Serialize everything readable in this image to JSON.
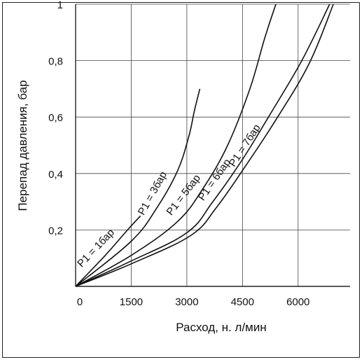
{
  "chart_data": {
    "type": "line",
    "xlabel": "Расход, н. л/мин",
    "ylabel": "Перепад давления, бар",
    "xlim": [
      0,
      7400
    ],
    "ylim": [
      0,
      1.0
    ],
    "x_ticks": [
      0,
      1500,
      3000,
      4500,
      6000
    ],
    "x_tick_labels": [
      "0",
      "1500",
      "3000",
      "4500",
      "6000"
    ],
    "y_ticks": [
      0.2,
      0.4,
      0.6,
      0.8,
      1.0
    ],
    "y_tick_labels": [
      "0,2",
      "0,4",
      "0,6",
      "0,8",
      "1"
    ],
    "grid": true,
    "series": [
      {
        "name": "P1 = 1бар",
        "x": [
          0,
          800,
          1400,
          1750
        ],
        "y": [
          0,
          0.11,
          0.2,
          0.25
        ]
      },
      {
        "name": "P1 = 3бар",
        "x": [
          0,
          1500,
          2200,
          2750,
          3050,
          3200,
          3350
        ],
        "y": [
          0,
          0.16,
          0.28,
          0.41,
          0.53,
          0.62,
          0.7
        ]
      },
      {
        "name": "P1 = 5бар",
        "x": [
          0,
          1500,
          2750,
          3450,
          4100,
          4700,
          5100,
          5400
        ],
        "y": [
          0,
          0.11,
          0.23,
          0.35,
          0.5,
          0.7,
          0.88,
          1.0
        ]
      },
      {
        "name": "P1 = 6бар",
        "x": [
          0,
          1500,
          3000,
          3700,
          4500,
          5200,
          6100,
          6850
        ],
        "y": [
          0,
          0.09,
          0.19,
          0.3,
          0.45,
          0.6,
          0.8,
          1.0
        ]
      },
      {
        "name": "P1 = 7бар",
        "x": [
          0,
          1500,
          3100,
          3800,
          4600,
          5400,
          6300,
          6950
        ],
        "y": [
          0,
          0.08,
          0.18,
          0.28,
          0.43,
          0.59,
          0.79,
          1.0
        ]
      }
    ]
  }
}
